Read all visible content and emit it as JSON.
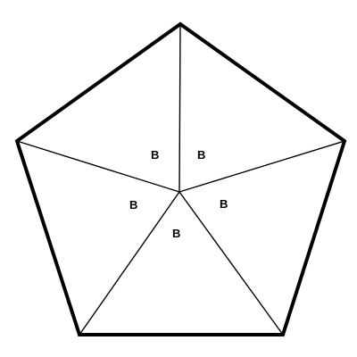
{
  "diagram": {
    "type": "regular-pentagon-divided-into-five-triangles",
    "angle_labels": [
      "B",
      "B",
      "B",
      "B",
      "B"
    ],
    "colors": {
      "background": "#ffffff",
      "outline": "#000000",
      "spokes": "#000000",
      "labels": "#000000"
    }
  }
}
